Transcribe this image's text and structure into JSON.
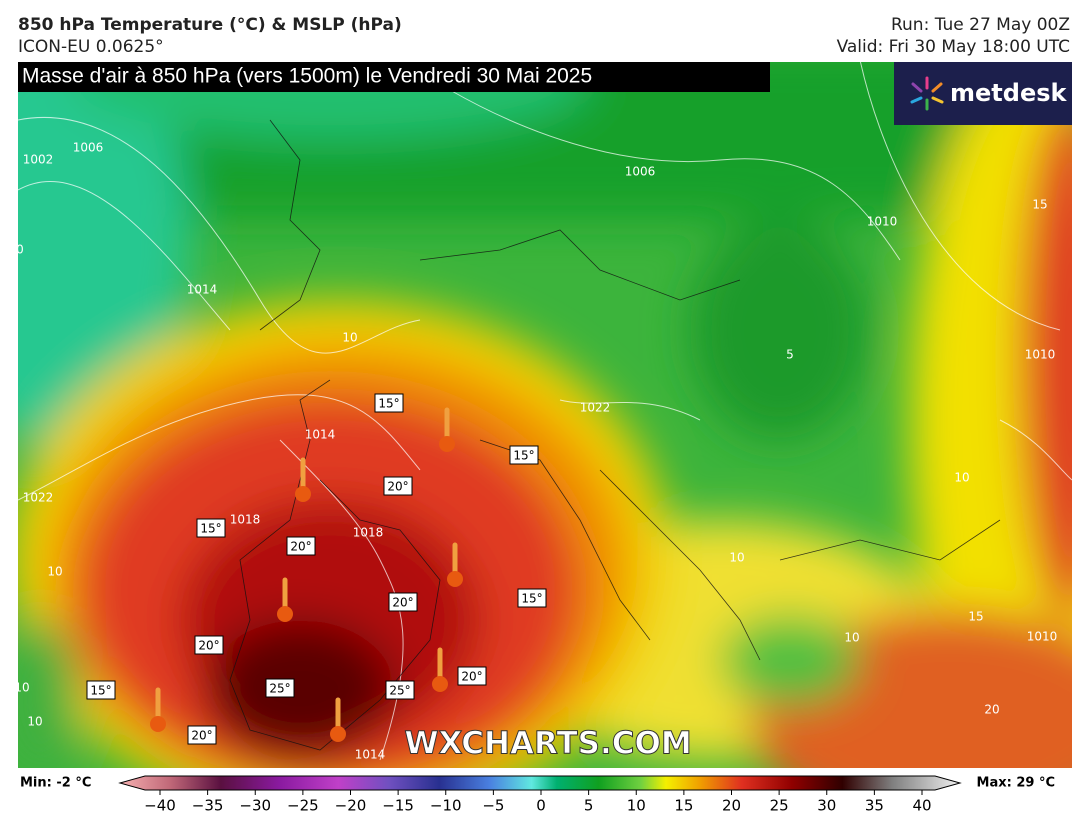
{
  "header": {
    "title": "850 hPa Temperature (°C) & MSLP (hPa)",
    "model": "ICON-EU 0.0625°",
    "run": "Run: Tue 27 May 00Z",
    "valid": "Valid: Fri 30 May 18:00 UTC"
  },
  "banner": "Masse d'air à 850 hPa (vers 1500m) le Vendredi 30 Mai 2025",
  "logo": "metdesk",
  "watermark": "WXCHARTS.COM",
  "temperature_labels": [
    "15°",
    "15°",
    "20°",
    "15°",
    "20°",
    "20°",
    "15°",
    "20°",
    "25°",
    "25°",
    "20°",
    "15°",
    "20°"
  ],
  "isobar_labels": [
    "1006",
    "1002",
    "1014",
    "1022",
    "1006",
    "1010",
    "1010",
    "1022",
    "1014",
    "1018",
    "1018",
    "10",
    "5",
    "10",
    "10",
    "10",
    "15",
    "15",
    "10",
    "10",
    "10",
    "20",
    "1010",
    "1014",
    "0"
  ],
  "colorbar": {
    "min_label": "Min: -2 °C",
    "max_label": "Max: 29 °C",
    "ticks": [
      {
        "value": -40,
        "label": "−40"
      },
      {
        "value": -35,
        "label": "−35"
      },
      {
        "value": -30,
        "label": "−30"
      },
      {
        "value": -25,
        "label": "−25"
      },
      {
        "value": -20,
        "label": "−20"
      },
      {
        "value": -15,
        "label": "−15"
      },
      {
        "value": -10,
        "label": "−10"
      },
      {
        "value": -5,
        "label": "−5"
      },
      0,
      5,
      10,
      15,
      20,
      25,
      30,
      35,
      40
    ]
  }
}
